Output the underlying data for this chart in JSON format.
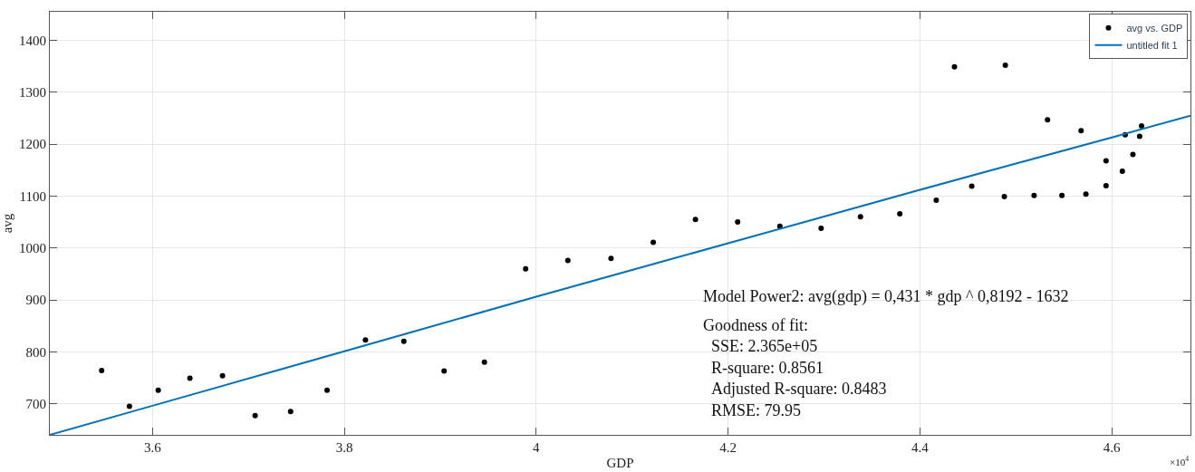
{
  "chart_data": {
    "type": "scatter",
    "xlabel": "GDP",
    "ylabel": "avg",
    "xlim": [
      3.493,
      4.682
    ],
    "ylim": [
      640,
      1455
    ],
    "xticks": [
      3.6,
      3.8,
      4,
      4.2,
      4.4,
      4.6
    ],
    "yticks": [
      700,
      800,
      900,
      1000,
      1100,
      1200,
      1300,
      1400
    ],
    "grid": true,
    "legend": "top right",
    "series": [
      {
        "name": "avg vs. GDP",
        "marker": "circle",
        "color": "#000000",
        "x": [
          3.547,
          3.576,
          3.606,
          3.639,
          3.673,
          3.707,
          3.744,
          3.782,
          3.822,
          3.862,
          3.904,
          3.946,
          3.989,
          4.033,
          4.078,
          4.122,
          4.166,
          4.21,
          4.254,
          4.297,
          4.338,
          4.379,
          4.417,
          4.436,
          4.454,
          4.488,
          4.489,
          4.519,
          4.533,
          4.548,
          4.568,
          4.573,
          4.594,
          4.594,
          4.611,
          4.614,
          4.622,
          4.629,
          4.631
        ],
        "values": [
          764,
          695,
          726,
          749,
          754,
          677,
          685,
          726,
          823,
          820,
          763,
          780,
          960,
          976,
          980,
          1011,
          1055,
          1050,
          1042,
          1038,
          1060,
          1066,
          1092,
          1349,
          1119,
          1099,
          1352,
          1101,
          1247,
          1101,
          1226,
          1104,
          1168,
          1120,
          1148,
          1218,
          1180,
          1215,
          1235
        ]
      },
      {
        "name": "untitled fit 1",
        "type": "line",
        "marker": "none",
        "line_style": "solid",
        "color": "#0072bd",
        "x": [
          3.493,
          3.6,
          3.8,
          4.0,
          4.2,
          4.4,
          4.6,
          4.682
        ],
        "values": [
          640,
          696,
          801,
          906,
          1009,
          1112,
          1213,
          1255
        ]
      }
    ],
    "annotations": [
      "Model Power2: avg(gdp) = 0,431 * gdp ^ 0,8192 - 1632",
      "Goodness of fit:",
      "  SSE: 2.365e+05",
      "  R-square: 0.8561",
      "  Adjusted R-square: 0.8483",
      "  RMSE: 79.95",
      "×10$^{4}$"
    ]
  }
}
